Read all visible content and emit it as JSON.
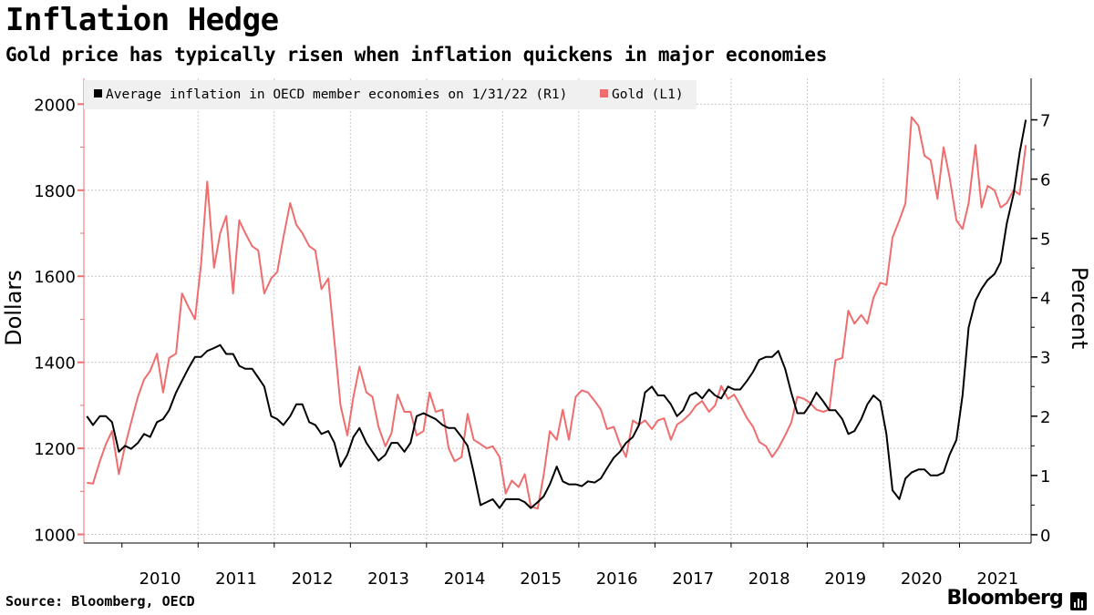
{
  "header": {
    "title": "Inflation Hedge",
    "subtitle": "Gold price has typically risen when inflation quickens in major economies"
  },
  "footer": {
    "source": "Source: Bloomberg, OECD",
    "brand": "Bloomberg"
  },
  "chart_data": {
    "type": "line",
    "left_axis": {
      "title": "Dollars",
      "range": [
        980,
        2060
      ],
      "ticks": [
        1000,
        1200,
        1400,
        1600,
        1800,
        2000
      ]
    },
    "right_axis": {
      "title": "Percent",
      "range": [
        -0.14,
        7.7
      ],
      "ticks": [
        0,
        1,
        2,
        3,
        4,
        5,
        6,
        7
      ]
    },
    "x_axis": {
      "range": [
        2009.5,
        2021.94
      ],
      "tick_labels": [
        "2010",
        "2011",
        "2012",
        "2013",
        "2014",
        "2015",
        "2016",
        "2017",
        "2018",
        "2019",
        "2020",
        "2021"
      ],
      "tick_positions": [
        2010,
        2011,
        2012,
        2013,
        2014,
        2015,
        2016,
        2017,
        2018,
        2019,
        2020,
        2021
      ]
    },
    "grid": true,
    "legend_position": "top-left",
    "colors": {
      "inflation": "#000000",
      "gold": "#ef6d6d",
      "grid": "#c8c8c8",
      "legend_bg": "#f0f0f0"
    },
    "series": [
      {
        "name": "Average inflation in OECD member economies on 1/31/22 (R1)",
        "axis": "right",
        "x": [
          2009.54,
          2009.62,
          2009.71,
          2009.79,
          2009.87,
          2009.96,
          2010.04,
          2010.12,
          2010.21,
          2010.29,
          2010.37,
          2010.46,
          2010.54,
          2010.62,
          2010.71,
          2010.79,
          2010.87,
          2010.96,
          2011.04,
          2011.12,
          2011.21,
          2011.29,
          2011.37,
          2011.46,
          2011.54,
          2011.62,
          2011.71,
          2011.79,
          2011.87,
          2011.96,
          2012.04,
          2012.12,
          2012.21,
          2012.29,
          2012.37,
          2012.46,
          2012.54,
          2012.62,
          2012.71,
          2012.79,
          2012.87,
          2012.96,
          2013.04,
          2013.12,
          2013.21,
          2013.29,
          2013.37,
          2013.46,
          2013.54,
          2013.62,
          2013.71,
          2013.79,
          2013.87,
          2013.96,
          2014.04,
          2014.12,
          2014.21,
          2014.29,
          2014.37,
          2014.46,
          2014.54,
          2014.62,
          2014.71,
          2014.79,
          2014.87,
          2014.96,
          2015.04,
          2015.12,
          2015.21,
          2015.29,
          2015.37,
          2015.46,
          2015.54,
          2015.62,
          2015.71,
          2015.79,
          2015.87,
          2015.96,
          2016.04,
          2016.12,
          2016.21,
          2016.29,
          2016.37,
          2016.46,
          2016.54,
          2016.62,
          2016.71,
          2016.79,
          2016.87,
          2016.96,
          2017.04,
          2017.12,
          2017.21,
          2017.29,
          2017.37,
          2017.46,
          2017.54,
          2017.62,
          2017.71,
          2017.79,
          2017.87,
          2017.96,
          2018.04,
          2018.12,
          2018.21,
          2018.29,
          2018.37,
          2018.46,
          2018.54,
          2018.62,
          2018.71,
          2018.79,
          2018.87,
          2018.96,
          2019.04,
          2019.12,
          2019.21,
          2019.29,
          2019.37,
          2019.46,
          2019.54,
          2019.62,
          2019.71,
          2019.79,
          2019.87,
          2019.96,
          2020.04,
          2020.12,
          2020.21,
          2020.29,
          2020.37,
          2020.46,
          2020.54,
          2020.62,
          2020.71,
          2020.79,
          2020.87,
          2020.96,
          2021.04,
          2021.12,
          2021.21,
          2021.29,
          2021.37,
          2021.46,
          2021.54,
          2021.62,
          2021.71,
          2021.79,
          2021.87
        ],
        "values": [
          2.0,
          1.85,
          2.0,
          2.0,
          1.9,
          1.4,
          1.5,
          1.45,
          1.55,
          1.7,
          1.65,
          1.9,
          1.95,
          2.1,
          2.4,
          2.6,
          2.8,
          3.0,
          3.0,
          3.1,
          3.15,
          3.2,
          3.05,
          3.05,
          2.85,
          2.8,
          2.8,
          2.65,
          2.5,
          2.0,
          1.95,
          1.85,
          2.0,
          2.2,
          2.2,
          1.9,
          1.85,
          1.7,
          1.75,
          1.55,
          1.15,
          1.35,
          1.65,
          1.8,
          1.55,
          1.4,
          1.25,
          1.35,
          1.55,
          1.55,
          1.4,
          1.55,
          2.0,
          2.05,
          2.0,
          1.95,
          1.85,
          1.8,
          1.8,
          1.65,
          1.5,
          1.05,
          0.5,
          0.55,
          0.6,
          0.45,
          0.6,
          0.6,
          0.6,
          0.55,
          0.45,
          0.55,
          0.65,
          0.85,
          1.15,
          0.9,
          0.85,
          0.85,
          0.82,
          0.9,
          0.88,
          0.95,
          1.12,
          1.3,
          1.4,
          1.55,
          1.65,
          1.85,
          2.4,
          2.5,
          2.35,
          2.35,
          2.2,
          2.0,
          2.1,
          2.35,
          2.4,
          2.3,
          2.45,
          2.35,
          2.3,
          2.5,
          2.45,
          2.45,
          2.6,
          2.75,
          2.95,
          3.0,
          3.0,
          3.1,
          2.8,
          2.4,
          2.05,
          2.05,
          2.2,
          2.4,
          2.25,
          2.1,
          2.1,
          1.95,
          1.7,
          1.75,
          1.95,
          2.2,
          2.35,
          2.25,
          1.7,
          0.75,
          0.6,
          0.95,
          1.05,
          1.1,
          1.1,
          1.0,
          1.0,
          1.05,
          1.35,
          1.6,
          2.35,
          3.5,
          3.95,
          4.15,
          4.3,
          4.4,
          4.6,
          5.25,
          5.75,
          6.45,
          7.0
        ]
      },
      {
        "name": "Gold (L1)",
        "axis": "left",
        "x": [
          2009.54,
          2009.62,
          2009.71,
          2009.79,
          2009.87,
          2009.96,
          2010.04,
          2010.12,
          2010.21,
          2010.29,
          2010.37,
          2010.46,
          2010.54,
          2010.62,
          2010.71,
          2010.79,
          2010.87,
          2010.96,
          2011.04,
          2011.12,
          2011.21,
          2011.29,
          2011.37,
          2011.46,
          2011.54,
          2011.62,
          2011.71,
          2011.79,
          2011.87,
          2011.96,
          2012.04,
          2012.12,
          2012.21,
          2012.29,
          2012.37,
          2012.46,
          2012.54,
          2012.62,
          2012.71,
          2012.79,
          2012.87,
          2012.96,
          2013.04,
          2013.12,
          2013.21,
          2013.29,
          2013.37,
          2013.46,
          2013.54,
          2013.62,
          2013.71,
          2013.79,
          2013.87,
          2013.96,
          2014.04,
          2014.12,
          2014.21,
          2014.29,
          2014.37,
          2014.46,
          2014.54,
          2014.62,
          2014.71,
          2014.79,
          2014.87,
          2014.96,
          2015.04,
          2015.12,
          2015.21,
          2015.29,
          2015.37,
          2015.46,
          2015.54,
          2015.62,
          2015.71,
          2015.79,
          2015.87,
          2015.96,
          2016.04,
          2016.12,
          2016.21,
          2016.29,
          2016.37,
          2016.46,
          2016.54,
          2016.62,
          2016.71,
          2016.79,
          2016.87,
          2016.96,
          2017.04,
          2017.12,
          2017.21,
          2017.29,
          2017.37,
          2017.46,
          2017.54,
          2017.62,
          2017.71,
          2017.79,
          2017.87,
          2017.96,
          2018.04,
          2018.12,
          2018.21,
          2018.29,
          2018.37,
          2018.46,
          2018.54,
          2018.62,
          2018.71,
          2018.79,
          2018.87,
          2018.96,
          2019.04,
          2019.12,
          2019.21,
          2019.29,
          2019.37,
          2019.46,
          2019.54,
          2019.62,
          2019.71,
          2019.79,
          2019.87,
          2019.96,
          2020.04,
          2020.12,
          2020.21,
          2020.29,
          2020.37,
          2020.46,
          2020.54,
          2020.62,
          2020.71,
          2020.79,
          2020.87,
          2020.96,
          2021.04,
          2021.12,
          2021.21,
          2021.29,
          2021.37,
          2021.46,
          2021.54,
          2021.62,
          2021.71,
          2021.79,
          2021.87
        ],
        "values": [
          1120,
          1118,
          1170,
          1210,
          1240,
          1140,
          1205,
          1260,
          1320,
          1360,
          1380,
          1420,
          1330,
          1410,
          1420,
          1560,
          1530,
          1500,
          1630,
          1820,
          1620,
          1700,
          1740,
          1560,
          1730,
          1700,
          1670,
          1660,
          1560,
          1595,
          1610,
          1690,
          1770,
          1720,
          1700,
          1670,
          1660,
          1570,
          1595,
          1450,
          1300,
          1230,
          1320,
          1390,
          1330,
          1320,
          1250,
          1205,
          1235,
          1325,
          1285,
          1285,
          1230,
          1240,
          1330,
          1285,
          1290,
          1200,
          1170,
          1180,
          1280,
          1220,
          1210,
          1200,
          1205,
          1180,
          1095,
          1125,
          1110,
          1140,
          1065,
          1060,
          1140,
          1240,
          1220,
          1290,
          1220,
          1320,
          1335,
          1330,
          1310,
          1290,
          1245,
          1250,
          1210,
          1180,
          1265,
          1255,
          1265,
          1245,
          1265,
          1270,
          1220,
          1255,
          1265,
          1280,
          1300,
          1310,
          1285,
          1300,
          1345,
          1315,
          1325,
          1300,
          1270,
          1250,
          1215,
          1205,
          1180,
          1200,
          1230,
          1260,
          1320,
          1315,
          1305,
          1290,
          1285,
          1290,
          1405,
          1410,
          1520,
          1490,
          1510,
          1490,
          1550,
          1585,
          1580,
          1690,
          1730,
          1770,
          1970,
          1950,
          1880,
          1870,
          1780,
          1900,
          1830,
          1730,
          1710,
          1770,
          1905,
          1760,
          1810,
          1800,
          1760,
          1770,
          1800,
          1790,
          1905
        ]
      }
    ]
  }
}
